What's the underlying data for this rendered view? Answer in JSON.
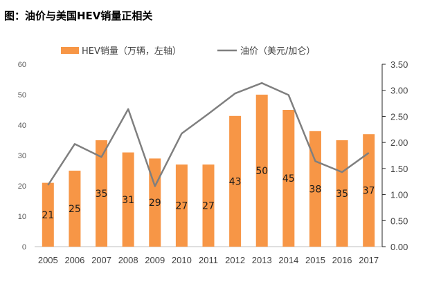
{
  "chart_data": {
    "type": "bar+line",
    "title": "图：油价与美国HEV销量正相关",
    "categories": [
      "2005",
      "2006",
      "2007",
      "2008",
      "2009",
      "2010",
      "2011",
      "2012",
      "2013",
      "2014",
      "2015",
      "2016",
      "2017"
    ],
    "series": [
      {
        "name": "HEV销量（万辆，左轴）",
        "type": "bar",
        "axis": "left",
        "values": [
          21,
          25,
          35,
          31,
          29,
          27,
          27,
          43,
          50,
          45,
          38,
          35,
          37
        ],
        "color": "#F79646"
      },
      {
        "name": "油价（美元/加仑）",
        "type": "line",
        "axis": "right",
        "values": [
          1.18,
          1.97,
          1.72,
          2.64,
          1.16,
          2.17,
          2.55,
          2.94,
          3.14,
          2.91,
          1.64,
          1.43,
          1.8
        ],
        "color": "#7F7F7F"
      }
    ],
    "y_left": {
      "min": 0,
      "max": 60,
      "ticks": [
        "0",
        "10",
        "20",
        "30",
        "40",
        "50",
        "60"
      ]
    },
    "y_right": {
      "min": 0,
      "max": 3.5,
      "ticks": [
        "0.00",
        "0.50",
        "1.00",
        "1.50",
        "2.00",
        "2.50",
        "3.00",
        "3.50"
      ]
    },
    "data_labels": [
      "21",
      "25",
      "35",
      "31",
      "29",
      "27",
      "27",
      "43",
      "50",
      "45",
      "38",
      "35",
      "37"
    ],
    "legend_position": "top",
    "grid": false
  }
}
